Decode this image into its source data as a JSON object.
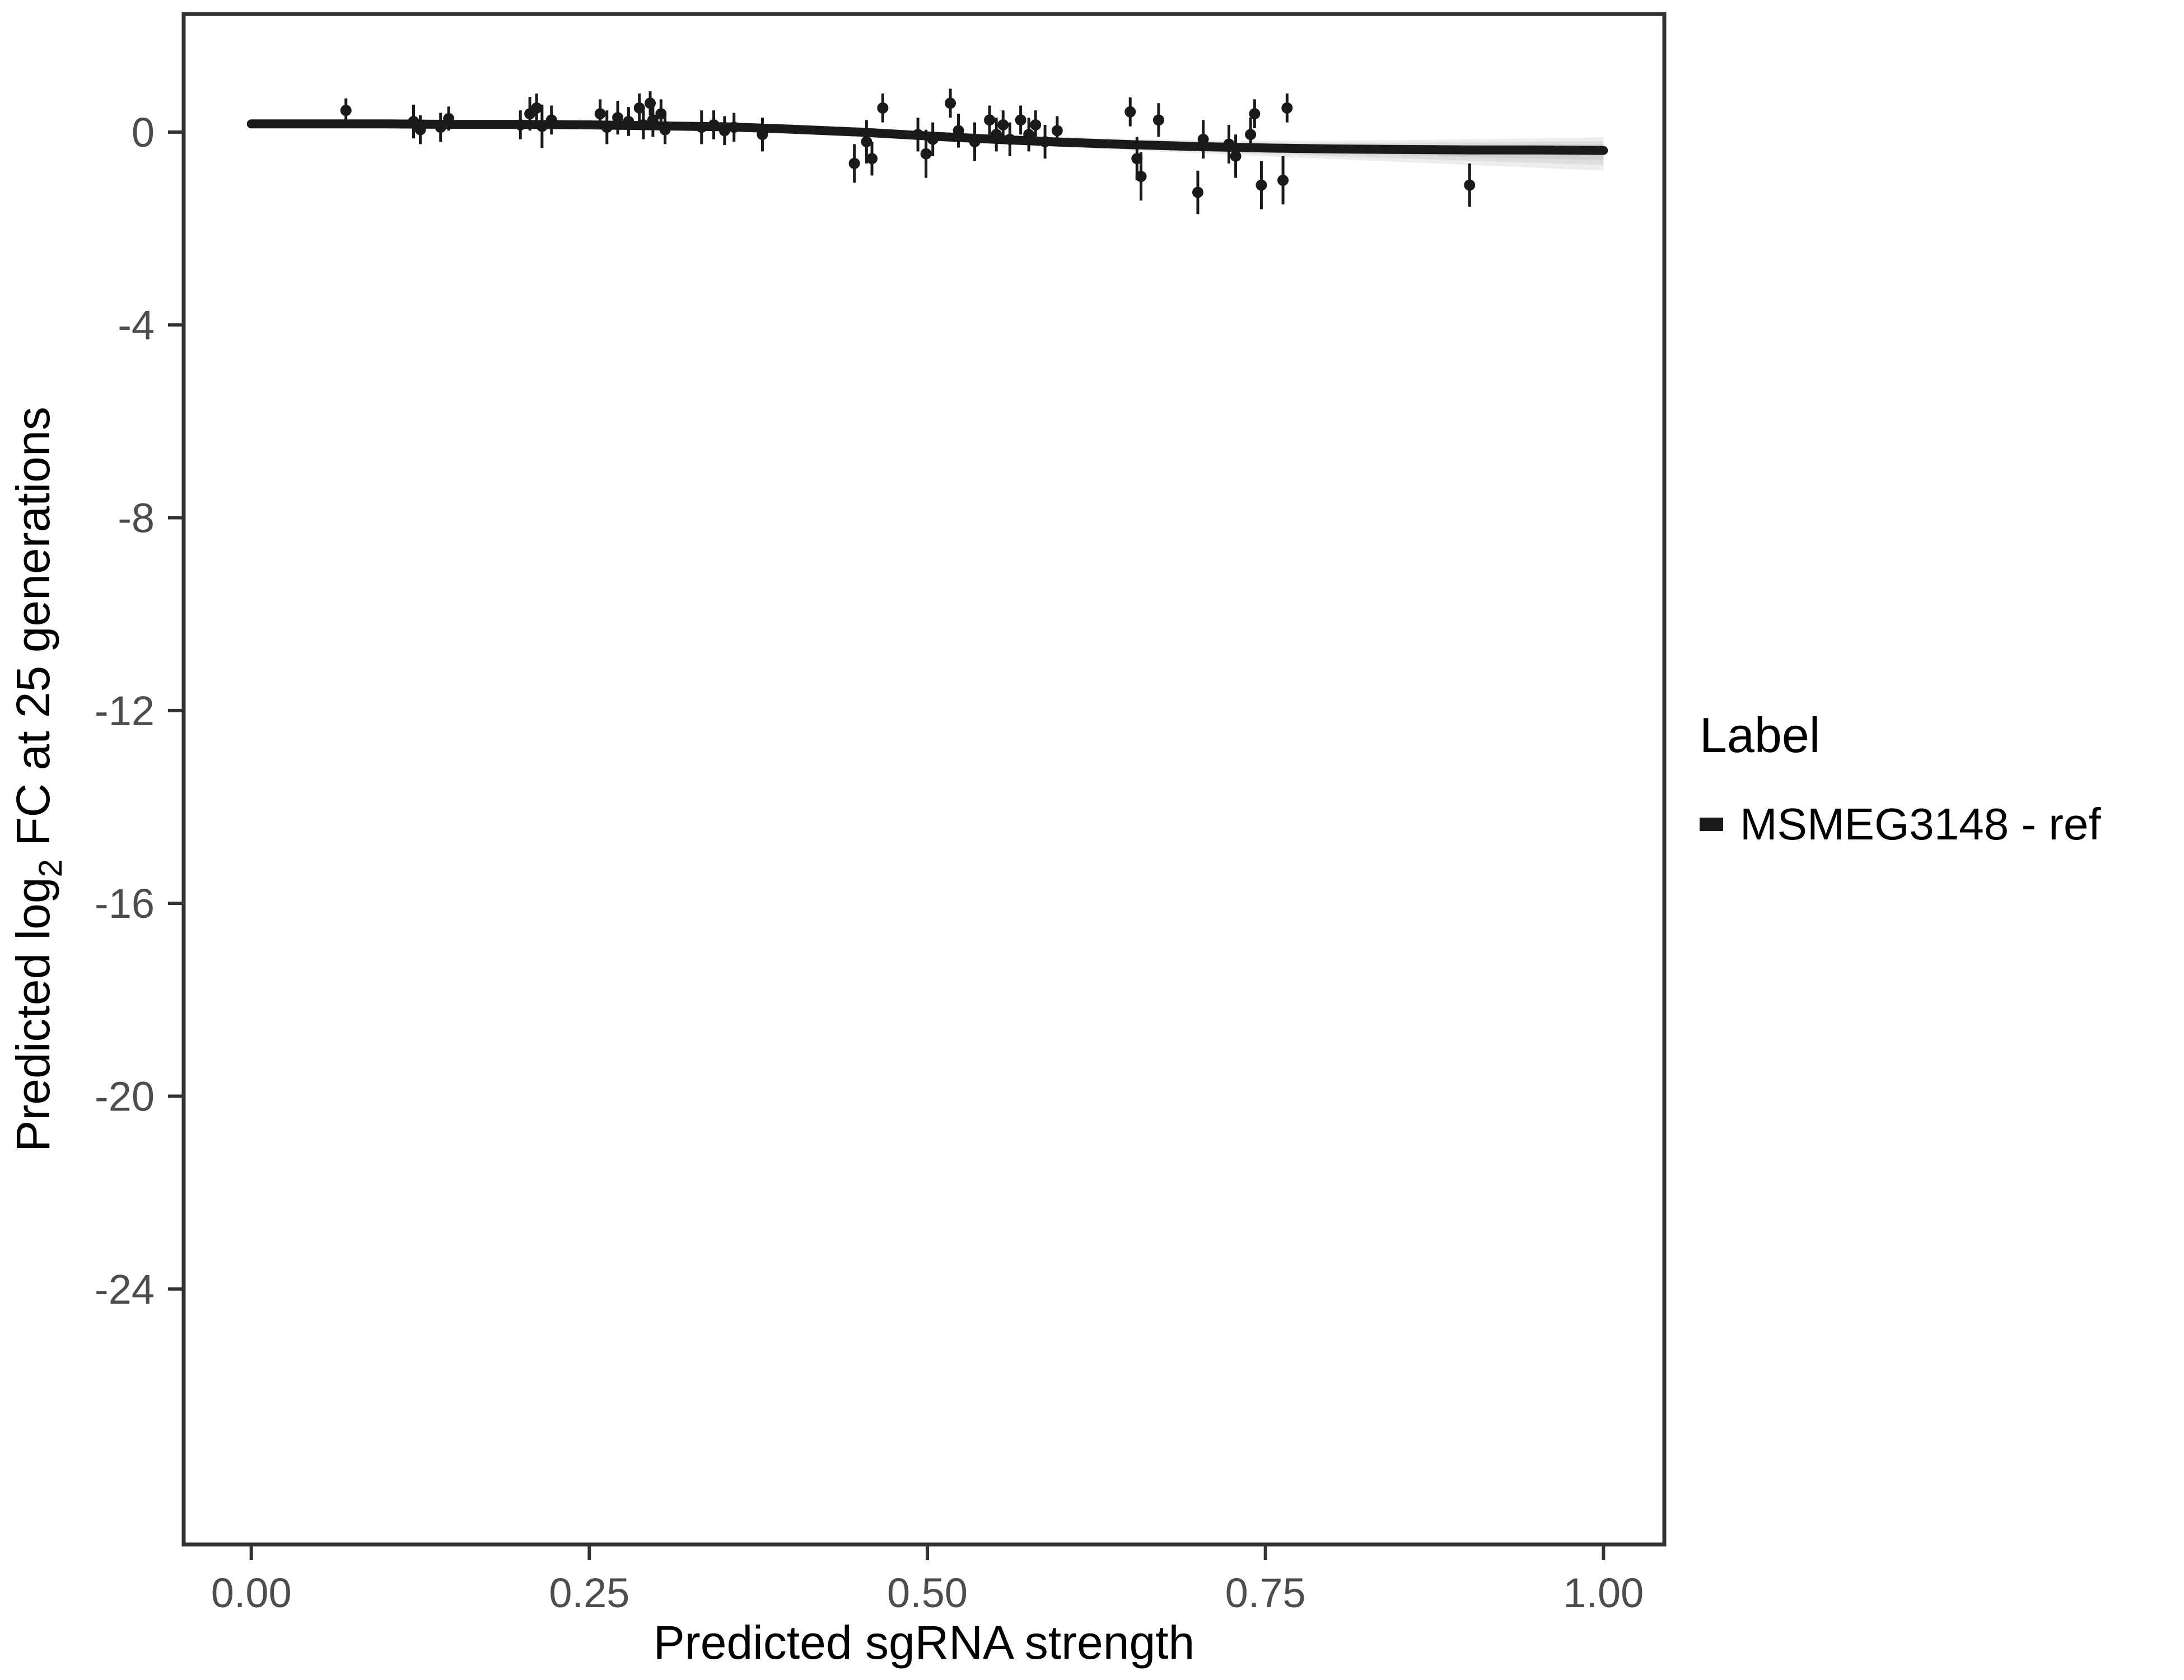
{
  "chart_data": {
    "type": "scatter",
    "title": "",
    "xlabel": "Predicted sgRNA strength",
    "ylabel": "Predicted log2 FC at 25 generations",
    "ylabel_parts": {
      "pre": "Predicted  log",
      "sub": "2",
      "post": " FC at 25 generations"
    },
    "xlim": [
      -0.05,
      1.045
    ],
    "ylim": [
      -29.3,
      2.45
    ],
    "x_ticks": [
      0.0,
      0.25,
      0.5,
      0.75,
      1.0
    ],
    "x_tick_labels": [
      "0.00",
      "0.25",
      "0.50",
      "0.75",
      "1.00"
    ],
    "y_ticks": [
      0,
      -4,
      -8,
      -12,
      -16,
      -20,
      -24
    ],
    "y_tick_labels": [
      "0",
      "-4",
      "-8",
      "-12",
      "-16",
      "-20",
      "-24"
    ],
    "grid": false,
    "legend": {
      "title": "Label",
      "position": "right",
      "entries": [
        {
          "label": "MSMEG3148 - ref",
          "color": "#1a1a1a"
        }
      ]
    },
    "colors": {
      "point": "#1a1a1a",
      "line": "#1a1a1a",
      "ribbon": "#8c8c8c",
      "axis": "#333333"
    },
    "points": [
      [
        0.07,
        0.45,
        0.25
      ],
      [
        0.12,
        0.22,
        0.35
      ],
      [
        0.125,
        0.05,
        0.3
      ],
      [
        0.14,
        0.1,
        0.3
      ],
      [
        0.146,
        0.28,
        0.25
      ],
      [
        0.199,
        0.15,
        0.3
      ],
      [
        0.206,
        0.38,
        0.35
      ],
      [
        0.211,
        0.5,
        0.3
      ],
      [
        0.215,
        0.12,
        0.45
      ],
      [
        0.222,
        0.25,
        0.3
      ],
      [
        0.258,
        0.38,
        0.3
      ],
      [
        0.263,
        0.1,
        0.35
      ],
      [
        0.271,
        0.3,
        0.35
      ],
      [
        0.279,
        0.22,
        0.3
      ],
      [
        0.287,
        0.5,
        0.3
      ],
      [
        0.29,
        0.15,
        0.3
      ],
      [
        0.295,
        0.6,
        0.25
      ],
      [
        0.297,
        0.25,
        0.35
      ],
      [
        0.303,
        0.38,
        0.3
      ],
      [
        0.306,
        0.05,
        0.3
      ],
      [
        0.333,
        0.1,
        0.35
      ],
      [
        0.342,
        0.15,
        0.3
      ],
      [
        0.35,
        0.03,
        0.3
      ],
      [
        0.357,
        0.1,
        0.3
      ],
      [
        0.378,
        -0.05,
        0.35
      ],
      [
        0.446,
        -0.65,
        0.4
      ],
      [
        0.455,
        -0.2,
        0.45
      ],
      [
        0.459,
        -0.55,
        0.35
      ],
      [
        0.467,
        0.5,
        0.3
      ],
      [
        0.493,
        -0.05,
        0.35
      ],
      [
        0.499,
        -0.45,
        0.5
      ],
      [
        0.504,
        -0.15,
        0.35
      ],
      [
        0.517,
        0.6,
        0.3
      ],
      [
        0.523,
        0.03,
        0.35
      ],
      [
        0.535,
        -0.2,
        0.4
      ],
      [
        0.546,
        0.25,
        0.3
      ],
      [
        0.551,
        -0.05,
        0.35
      ],
      [
        0.556,
        0.15,
        0.3
      ],
      [
        0.561,
        -0.15,
        0.35
      ],
      [
        0.569,
        0.25,
        0.3
      ],
      [
        0.575,
        -0.05,
        0.35
      ],
      [
        0.58,
        0.15,
        0.3
      ],
      [
        0.587,
        -0.2,
        0.35
      ],
      [
        0.596,
        0.03,
        0.3
      ],
      [
        0.65,
        0.42,
        0.3
      ],
      [
        0.655,
        -0.55,
        0.45
      ],
      [
        0.658,
        -0.92,
        0.5
      ],
      [
        0.671,
        0.25,
        0.35
      ],
      [
        0.7,
        -1.25,
        0.45
      ],
      [
        0.704,
        -0.15,
        0.4
      ],
      [
        0.723,
        -0.25,
        0.4
      ],
      [
        0.728,
        -0.5,
        0.45
      ],
      [
        0.739,
        -0.05,
        0.35
      ],
      [
        0.742,
        0.38,
        0.3
      ],
      [
        0.747,
        -1.1,
        0.5
      ],
      [
        0.763,
        -1.0,
        0.5
      ],
      [
        0.766,
        0.5,
        0.3
      ],
      [
        0.901,
        -1.1,
        0.45
      ]
    ],
    "curve": [
      [
        0.0,
        0.17,
        0.08,
        0.26
      ],
      [
        0.05,
        0.17,
        0.09,
        0.25
      ],
      [
        0.1,
        0.17,
        0.09,
        0.24
      ],
      [
        0.15,
        0.16,
        0.09,
        0.23
      ],
      [
        0.2,
        0.16,
        0.09,
        0.22
      ],
      [
        0.25,
        0.15,
        0.08,
        0.21
      ],
      [
        0.3,
        0.13,
        0.07,
        0.2
      ],
      [
        0.35,
        0.11,
        0.04,
        0.17
      ],
      [
        0.4,
        0.06,
        -0.01,
        0.13
      ],
      [
        0.45,
        0.0,
        -0.08,
        0.08
      ],
      [
        0.5,
        -0.08,
        -0.16,
        0.01
      ],
      [
        0.55,
        -0.15,
        -0.24,
        -0.05
      ],
      [
        0.6,
        -0.21,
        -0.31,
        -0.1
      ],
      [
        0.65,
        -0.26,
        -0.38,
        -0.14
      ],
      [
        0.7,
        -0.3,
        -0.44,
        -0.17
      ],
      [
        0.75,
        -0.33,
        -0.5,
        -0.18
      ],
      [
        0.8,
        -0.35,
        -0.56,
        -0.18
      ],
      [
        0.85,
        -0.36,
        -0.62,
        -0.17
      ],
      [
        0.9,
        -0.37,
        -0.68,
        -0.15
      ],
      [
        0.95,
        -0.37,
        -0.74,
        -0.13
      ],
      [
        1.0,
        -0.38,
        -0.8,
        -0.11
      ]
    ]
  }
}
